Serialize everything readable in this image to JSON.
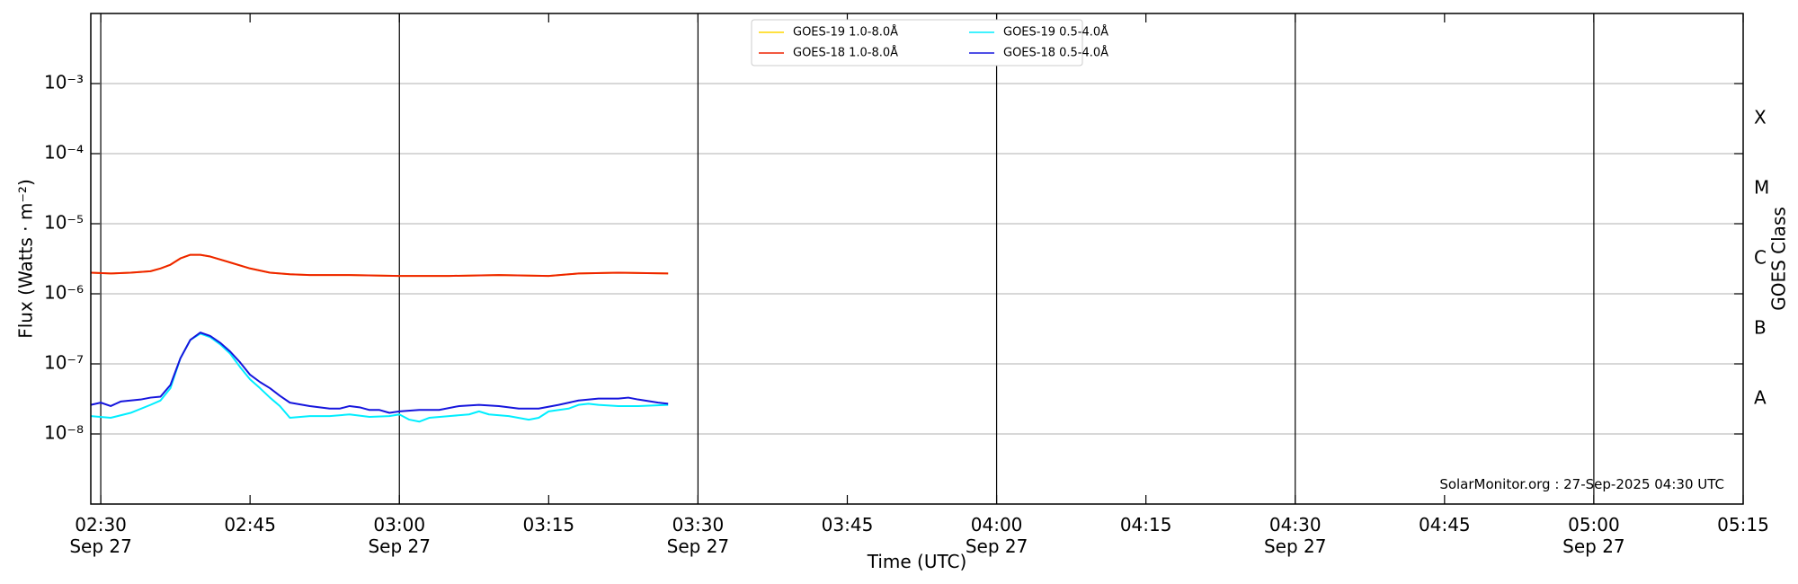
{
  "chart_data": {
    "type": "line",
    "y_label": "Flux (Watts · m⁻²)",
    "x_label": "Time (UTC)",
    "y2_label": "GOES Class",
    "annotation": "SolarMonitor.org : 27-Sep-2025 04:30 UTC",
    "log_y": true,
    "grid": true,
    "legend": "upper center",
    "xlim": [
      "02:29",
      "05:15"
    ],
    "ylim": [
      1e-09,
      0.01
    ],
    "xticks": [
      {
        "value": "02:30",
        "label": "02:30",
        "date": "Sep 27"
      },
      {
        "value": "02:45",
        "label": "02:45"
      },
      {
        "value": "03:00",
        "label": "03:00",
        "date": "Sep 27"
      },
      {
        "value": "03:15",
        "label": "03:15"
      },
      {
        "value": "03:30",
        "label": "03:30",
        "date": "Sep 27"
      },
      {
        "value": "03:45",
        "label": "03:45"
      },
      {
        "value": "04:00",
        "label": "04:00",
        "date": "Sep 27"
      },
      {
        "value": "04:15",
        "label": "04:15"
      },
      {
        "value": "04:30",
        "label": "04:30",
        "date": "Sep 27"
      },
      {
        "value": "04:45",
        "label": "04:45"
      },
      {
        "value": "05:00",
        "label": "05:00",
        "date": "Sep 27"
      },
      {
        "value": "05:15",
        "label": "05:15"
      }
    ],
    "yticks": [
      {
        "value": 1e-08,
        "label": "10⁻⁸"
      },
      {
        "value": 1e-07,
        "label": "10⁻⁷"
      },
      {
        "value": 1e-06,
        "label": "10⁻⁶"
      },
      {
        "value": 1e-05,
        "label": "10⁻⁵"
      },
      {
        "value": 0.0001,
        "label": "10⁻⁴"
      },
      {
        "value": 0.001,
        "label": "10⁻³"
      }
    ],
    "goes_classes": [
      {
        "label": "A",
        "range": [
          1e-08,
          1e-07
        ]
      },
      {
        "label": "B",
        "range": [
          1e-07,
          1e-06
        ]
      },
      {
        "label": "C",
        "range": [
          1e-06,
          1e-05
        ]
      },
      {
        "label": "M",
        "range": [
          1e-05,
          0.0001
        ]
      },
      {
        "label": "X",
        "range": [
          0.0001,
          0.001
        ]
      }
    ],
    "series": [
      {
        "name": "GOES-19 1.0-8.0Å",
        "color": "#ffd700",
        "x": [
          "02:29",
          "02:31",
          "02:33",
          "02:35",
          "02:36",
          "02:37",
          "02:38",
          "02:39",
          "02:40",
          "02:41",
          "02:43",
          "02:45",
          "02:47",
          "02:49",
          "02:51",
          "02:55",
          "03:00",
          "03:05",
          "03:10",
          "03:15",
          "03:18",
          "03:22",
          "03:27"
        ],
        "values": [
          2e-06,
          1.95e-06,
          2e-06,
          2.1e-06,
          2.3e-06,
          2.6e-06,
          3.2e-06,
          3.6e-06,
          3.6e-06,
          3.4e-06,
          2.8e-06,
          2.3e-06,
          2e-06,
          1.9e-06,
          1.85e-06,
          1.85e-06,
          1.8e-06,
          1.8e-06,
          1.85e-06,
          1.8e-06,
          1.95e-06,
          2e-06,
          1.95e-06
        ]
      },
      {
        "name": "GOES-18 1.0-8.0Å",
        "color": "#ee2200",
        "x": [
          "02:29",
          "02:31",
          "02:33",
          "02:35",
          "02:36",
          "02:37",
          "02:38",
          "02:39",
          "02:40",
          "02:41",
          "02:43",
          "02:45",
          "02:47",
          "02:49",
          "02:51",
          "02:55",
          "03:00",
          "03:05",
          "03:10",
          "03:15",
          "03:18",
          "03:22",
          "03:27"
        ],
        "values": [
          2e-06,
          1.95e-06,
          2e-06,
          2.1e-06,
          2.3e-06,
          2.6e-06,
          3.2e-06,
          3.6e-06,
          3.6e-06,
          3.4e-06,
          2.8e-06,
          2.3e-06,
          2e-06,
          1.9e-06,
          1.85e-06,
          1.85e-06,
          1.8e-06,
          1.8e-06,
          1.85e-06,
          1.8e-06,
          1.95e-06,
          2e-06,
          1.95e-06
        ]
      },
      {
        "name": "GOES-19 0.5-4.0Å",
        "color": "#00eeff",
        "x": [
          "02:29",
          "02:31",
          "02:33",
          "02:35",
          "02:36",
          "02:37",
          "02:38",
          "02:39",
          "02:40",
          "02:41",
          "02:42",
          "02:43",
          "02:44",
          "02:45",
          "02:46",
          "02:47",
          "02:48",
          "02:49",
          "02:51",
          "02:53",
          "02:55",
          "02:57",
          "02:59",
          "03:00",
          "03:01",
          "03:02",
          "03:03",
          "03:05",
          "03:07",
          "03:08",
          "03:09",
          "03:11",
          "03:13",
          "03:14",
          "03:15",
          "03:17",
          "03:18",
          "03:19",
          "03:20",
          "03:22",
          "03:24",
          "03:27"
        ],
        "values": [
          1.8e-08,
          1.7e-08,
          2e-08,
          2.6e-08,
          3e-08,
          4.5e-08,
          1.2e-07,
          2.2e-07,
          2.7e-07,
          2.4e-07,
          1.9e-07,
          1.4e-07,
          9e-08,
          6e-08,
          4.5e-08,
          3.3e-08,
          2.5e-08,
          1.7e-08,
          1.8e-08,
          1.8e-08,
          1.9e-08,
          1.75e-08,
          1.8e-08,
          1.9e-08,
          1.6e-08,
          1.5e-08,
          1.7e-08,
          1.8e-08,
          1.9e-08,
          2.1e-08,
          1.9e-08,
          1.8e-08,
          1.6e-08,
          1.7e-08,
          2.1e-08,
          2.3e-08,
          2.6e-08,
          2.7e-08,
          2.6e-08,
          2.5e-08,
          2.5e-08,
          2.6e-08
        ]
      },
      {
        "name": "GOES-18 0.5-4.0Å",
        "color": "#1515dd",
        "x": [
          "02:29",
          "02:30",
          "02:31",
          "02:32",
          "02:34",
          "02:35",
          "02:36",
          "02:37",
          "02:38",
          "02:39",
          "02:40",
          "02:41",
          "02:42",
          "02:43",
          "02:44",
          "02:45",
          "02:46",
          "02:47",
          "02:48",
          "02:49",
          "02:51",
          "02:53",
          "02:54",
          "02:55",
          "02:56",
          "02:57",
          "02:58",
          "02:59",
          "03:00",
          "03:02",
          "03:04",
          "03:06",
          "03:08",
          "03:10",
          "03:12",
          "03:14",
          "03:16",
          "03:18",
          "03:20",
          "03:22",
          "03:23",
          "03:24",
          "03:26",
          "03:27"
        ],
        "values": [
          2.6e-08,
          2.8e-08,
          2.5e-08,
          2.9e-08,
          3.1e-08,
          3.3e-08,
          3.4e-08,
          5e-08,
          1.2e-07,
          2.2e-07,
          2.8e-07,
          2.5e-07,
          2e-07,
          1.5e-07,
          1.05e-07,
          7e-08,
          5.5e-08,
          4.5e-08,
          3.5e-08,
          2.8e-08,
          2.5e-08,
          2.3e-08,
          2.3e-08,
          2.5e-08,
          2.4e-08,
          2.2e-08,
          2.2e-08,
          2e-08,
          2.1e-08,
          2.2e-08,
          2.2e-08,
          2.5e-08,
          2.6e-08,
          2.5e-08,
          2.3e-08,
          2.3e-08,
          2.6e-08,
          3e-08,
          3.2e-08,
          3.2e-08,
          3.3e-08,
          3.1e-08,
          2.8e-08,
          2.7e-08
        ]
      }
    ]
  }
}
